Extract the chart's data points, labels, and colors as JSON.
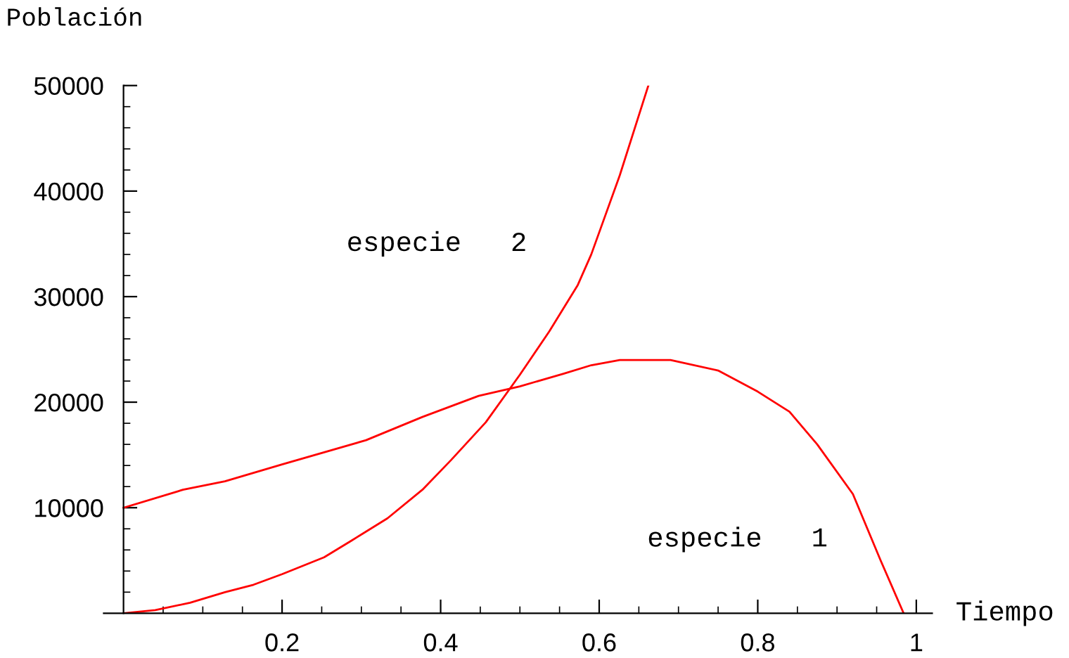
{
  "chart_data": {
    "type": "line",
    "xlabel": "Tiempo",
    "ylabel": "Población",
    "series": [
      {
        "color": "#ff0000",
        "x": [
          0,
          0.075,
          0.128,
          0.2,
          0.306,
          0.377,
          0.448,
          0.5,
          0.555,
          0.59,
          0.626,
          0.69,
          0.75,
          0.8,
          0.84,
          0.875,
          0.92,
          0.955,
          0.984
        ],
        "values": [
          10000,
          11700,
          12500,
          14100,
          16400,
          18600,
          20600,
          21500,
          22700,
          23500,
          24000,
          24000,
          23000,
          21000,
          19100,
          16000,
          11300,
          5000,
          0
        ]
      },
      {
        "color": "#ff0000",
        "x": [
          0,
          0.04,
          0.084,
          0.128,
          0.164,
          0.2,
          0.253,
          0.288,
          0.333,
          0.377,
          0.413,
          0.457,
          0.5,
          0.537,
          0.573,
          0.59,
          0.626,
          0.662
        ],
        "values": [
          0,
          300,
          1000,
          2000,
          2700,
          3700,
          5300,
          6900,
          9000,
          11700,
          14500,
          18100,
          22600,
          26700,
          31100,
          34000,
          41500,
          50000
        ]
      }
    ],
    "annotations": [
      "especie   1",
      "especie   2"
    ],
    "xlim": [
      -0.025,
      1.02
    ],
    "ylim": [
      0,
      50000
    ],
    "xticks": [
      0.2,
      0.4,
      0.6,
      0.8,
      1,
      {
        "value": 0.05,
        "label": null
      },
      {
        "value": 0.1,
        "label": null
      },
      {
        "value": 0.15,
        "label": null
      },
      {
        "value": 0.25,
        "label": null
      },
      {
        "value": 0.3,
        "label": null
      },
      {
        "value": 0.35,
        "label": null
      },
      {
        "value": 0.45,
        "label": null
      },
      {
        "value": 0.5,
        "label": null
      },
      {
        "value": 0.55,
        "label": null
      },
      {
        "value": 0.65,
        "label": null
      },
      {
        "value": 0.7,
        "label": null
      },
      {
        "value": 0.75,
        "label": null
      },
      {
        "value": 0.85,
        "label": null
      },
      {
        "value": 0.9,
        "label": null
      },
      {
        "value": 0.95,
        "label": null
      }
    ],
    "yticks": [
      10000,
      20000,
      30000,
      40000,
      50000,
      {
        "value": 2000,
        "label": null
      },
      {
        "value": 4000,
        "label": null
      },
      {
        "value": 6000,
        "label": null
      },
      {
        "value": 8000,
        "label": null
      },
      {
        "value": 12000,
        "label": null
      },
      {
        "value": 14000,
        "label": null
      },
      {
        "value": 16000,
        "label": null
      },
      {
        "value": 18000,
        "label": null
      },
      {
        "value": 22000,
        "label": null
      },
      {
        "value": 24000,
        "label": null
      },
      {
        "value": 26000,
        "label": null
      },
      {
        "value": 28000,
        "label": null
      },
      {
        "value": 32000,
        "label": null
      },
      {
        "value": 34000,
        "label": null
      },
      {
        "value": 36000,
        "label": null
      },
      {
        "value": 38000,
        "label": null
      },
      {
        "value": 42000,
        "label": null
      },
      {
        "value": 44000,
        "label": null
      },
      {
        "value": 46000,
        "label": null
      },
      {
        "value": 48000,
        "label": null
      }
    ],
    "grid": false,
    "marker": "none",
    "line_style": "solid"
  }
}
